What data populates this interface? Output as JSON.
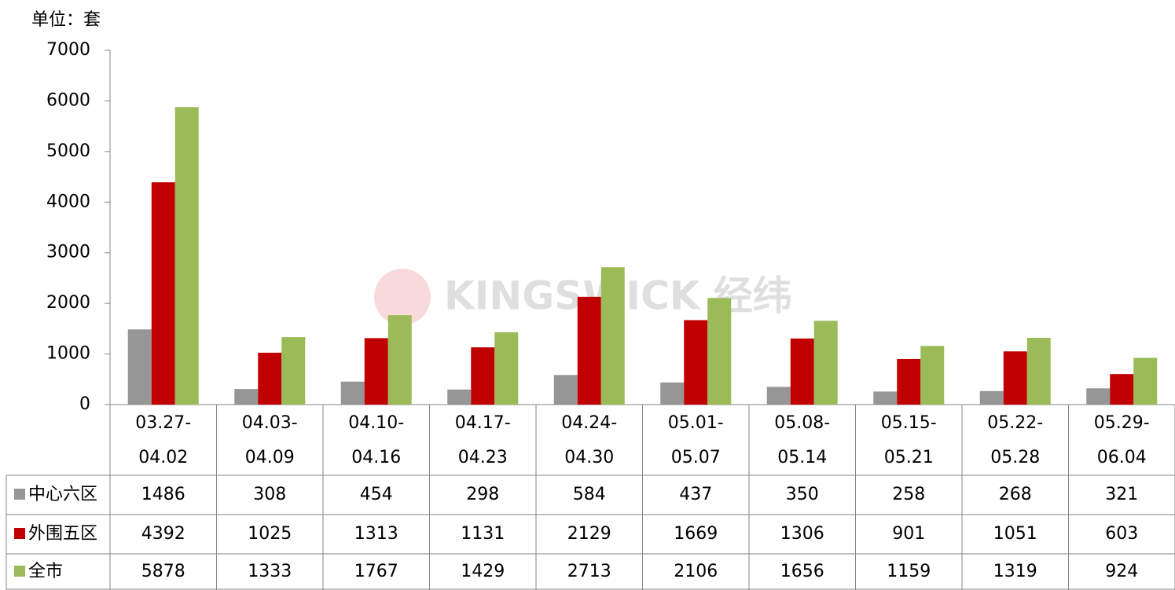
{
  "chart_data": {
    "type": "bar",
    "y_axis_label": "单位：套",
    "watermark": "KINGSWICK 经纬",
    "categories": [
      "03.27-04.02",
      "04.03-04.09",
      "04.10-04.16",
      "04.17-04.23",
      "04.24-04.30",
      "05.01-05.07",
      "05.08-05.14",
      "05.15-05.21",
      "05.22-05.28",
      "05.29-06.04"
    ],
    "series": [
      {
        "name": "中心六区",
        "color": "#969696",
        "values": [
          1486,
          308,
          454,
          298,
          584,
          437,
          350,
          258,
          268,
          321
        ]
      },
      {
        "name": "外围五区",
        "color": "#c00000",
        "values": [
          4392,
          1025,
          1313,
          1131,
          2129,
          1669,
          1306,
          901,
          1051,
          603
        ]
      },
      {
        "name": "全市",
        "color": "#9bbb59",
        "values": [
          5878,
          1333,
          1767,
          1429,
          2713,
          2106,
          1656,
          1159,
          1319,
          924
        ]
      }
    ],
    "ylim": [
      0,
      7000
    ],
    "yticks": [
      0,
      1000,
      2000,
      3000,
      4000,
      5000,
      6000,
      7000
    ],
    "grid": false
  }
}
